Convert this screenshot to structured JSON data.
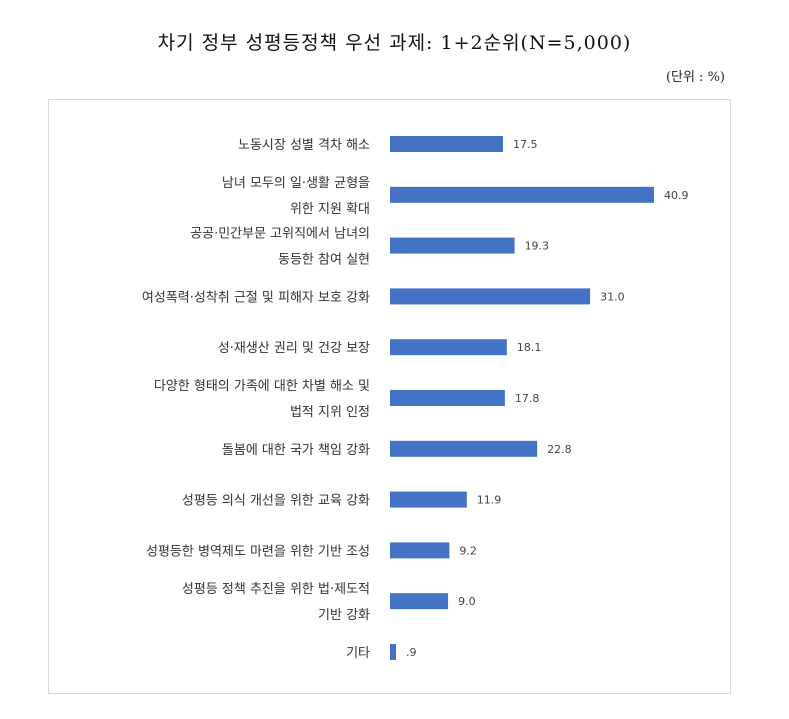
{
  "title": "차기 정부 성평등정책 우선 과제: 1+2순위(N=5,000)",
  "unit": "(단위 : %)",
  "chart_data": {
    "type": "bar",
    "orientation": "horizontal",
    "title": "차기 정부 성평등정책 우선 과제: 1+2순위(N=5,000)",
    "unit": "(단위 : %)",
    "bar_color": "#4472C4",
    "grid": false,
    "categories": [
      [
        "노동시장 성별 격차 해소"
      ],
      [
        "남녀 모두의 일·생활 균형을",
        "위한 지원 확대"
      ],
      [
        "공공·민간부문 고위직에서 남녀의",
        "동등한 참여 실현"
      ],
      [
        "여성폭력·성착취 근절 및 피해자 보호 강화"
      ],
      [
        "성·재생산 권리 및 건강 보장"
      ],
      [
        "다양한 형태의 가족에 대한 차별 해소 및",
        "법적 지위 인정"
      ],
      [
        "돌봄에 대한 국가 책임 강화"
      ],
      [
        "성평등 의식 개선을 위한 교육 강화"
      ],
      [
        "성평등한 병역제도 마련을 위한 기반 조성"
      ],
      [
        "성평등 정책 추진을 위한 법·제도적",
        "기반 강화"
      ],
      [
        "기타"
      ]
    ],
    "values": [
      17.5,
      40.9,
      19.3,
      31.0,
      18.1,
      17.8,
      22.8,
      11.9,
      9.2,
      9.0,
      0.9
    ],
    "value_labels": [
      "17.5",
      "40.9",
      "19.3",
      "31.0",
      "18.1",
      "17.8",
      "22.8",
      "11.9",
      "9.2",
      "9.0",
      ".9"
    ],
    "xlim": [
      0,
      42
    ]
  }
}
